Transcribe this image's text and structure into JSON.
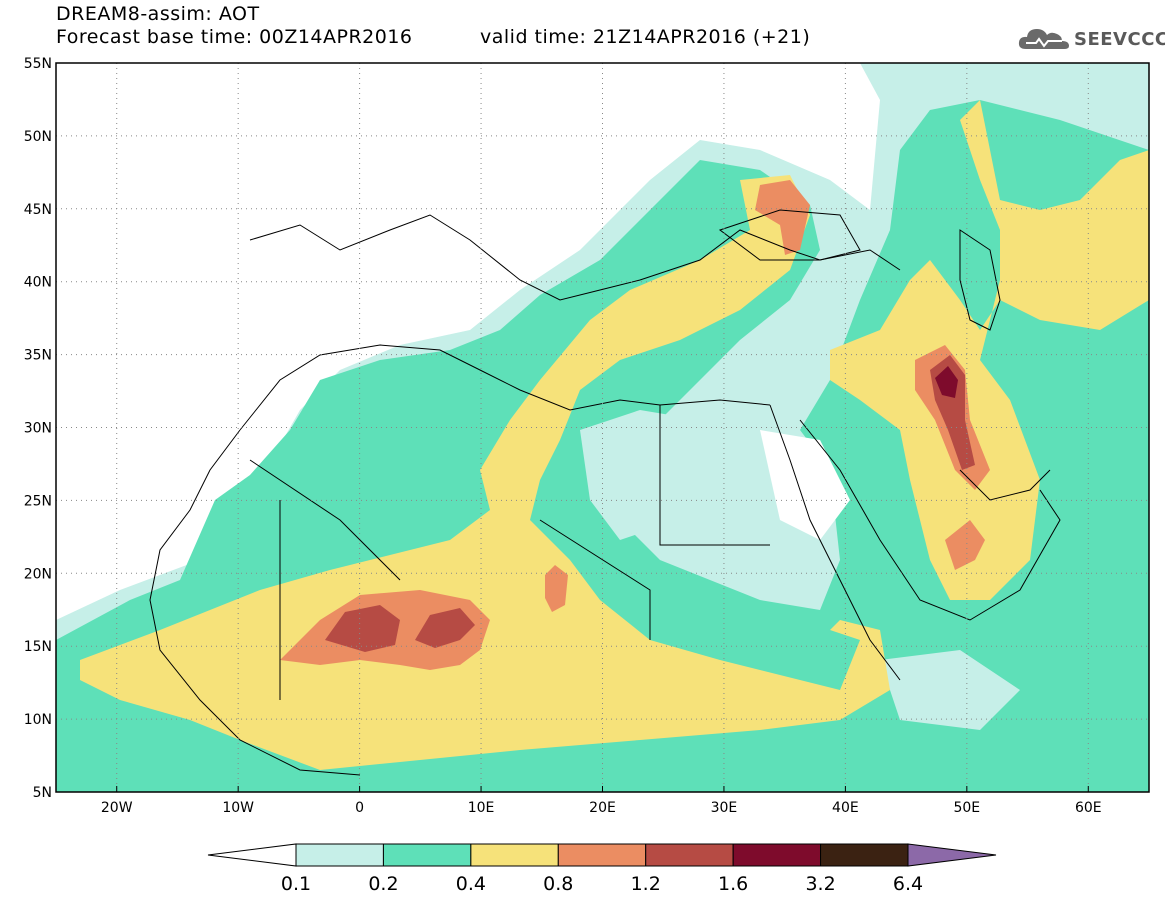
{
  "header": {
    "line1": "DREAM8-assim: AOT",
    "line2": "Forecast base time: 00Z14APR2016",
    "line3": "valid time: 21Z14APR2016 (+21)",
    "logo_text": "SEEVCCC",
    "logo_icon": "cloud-icon"
  },
  "map": {
    "projection": "lat-lon",
    "lon_range": [
      -25,
      65
    ],
    "lat_range": [
      5,
      55
    ],
    "lat_labels": [
      "55N",
      "50N",
      "45N",
      "40N",
      "35N",
      "30N",
      "25N",
      "20N",
      "15N",
      "10N",
      "5N"
    ],
    "lon_labels": [
      "20W",
      "10W",
      "0",
      "10E",
      "20E",
      "30E",
      "40E",
      "50E",
      "60E"
    ],
    "grid": "dotted"
  },
  "colorbar": {
    "labels": [
      "0.1",
      "0.2",
      "0.4",
      "0.8",
      "1.2",
      "1.6",
      "3.2",
      "6.4"
    ],
    "colors": [
      "#ffffff",
      "#c6efe8",
      "#5ee0b8",
      "#f6e27a",
      "#eb8d62",
      "#b64b44",
      "#7e0b2c",
      "#3b2212",
      "#8c69a8"
    ]
  }
}
